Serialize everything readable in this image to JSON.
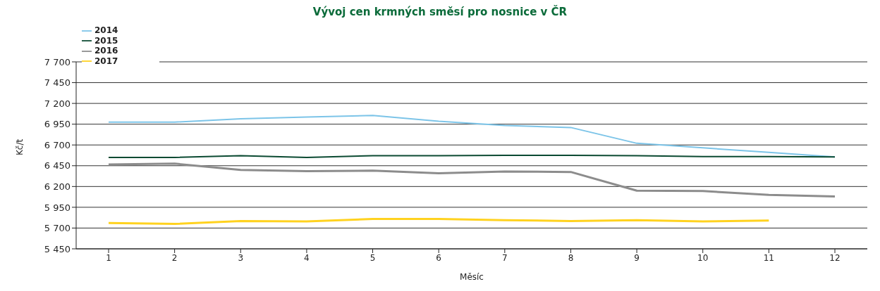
{
  "chart_data": {
    "type": "line",
    "title": "Vývoj cen krmných směsí pro nosnice v ČR",
    "xlabel": "Měsíc",
    "ylabel": "Kč/t",
    "categories": [
      "1",
      "2",
      "3",
      "4",
      "5",
      "6",
      "7",
      "8",
      "9",
      "10",
      "11",
      "12"
    ],
    "series": [
      {
        "name": "2014",
        "color": "#7cc4e8",
        "values": [
          6975,
          6975,
          7015,
          7035,
          7055,
          6985,
          6935,
          6910,
          6720,
          6665,
          6610,
          6555
        ]
      },
      {
        "name": "2015",
        "color": "#0b4a32",
        "values": [
          6550,
          6550,
          6570,
          6550,
          6570,
          6570,
          6575,
          6575,
          6570,
          6560,
          6560,
          6555
        ]
      },
      {
        "name": "2016",
        "color": "#8c8c8c",
        "values": [
          6465,
          6475,
          6400,
          6385,
          6390,
          6360,
          6380,
          6375,
          6150,
          6145,
          6100,
          6080
        ]
      },
      {
        "name": "2017",
        "color": "#ffd21f",
        "values": [
          5760,
          5750,
          5785,
          5780,
          5810,
          5810,
          5795,
          5785,
          5795,
          5780,
          5790,
          null
        ]
      }
    ],
    "ylim": [
      5450,
      7700
    ],
    "yticks": [
      5450,
      5700,
      5950,
      6200,
      6450,
      6700,
      6950,
      7200,
      7450,
      7700
    ],
    "grid": "y",
    "legend": "top left",
    "marker": "none",
    "line_style": "solid"
  }
}
